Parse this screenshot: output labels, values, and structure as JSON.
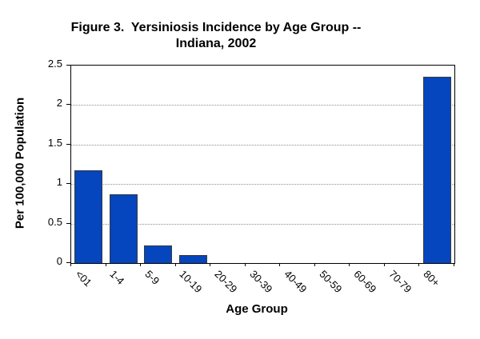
{
  "figure": {
    "background": "#ffffff"
  },
  "chart_data": {
    "type": "bar",
    "title": "Figure 3.  Yersiniosis Incidence by Age Group -- Indiana, 2002",
    "title_lines": [
      "Figure 3.  Yersiniosis Incidence by Age Group --",
      "Indiana, 2002"
    ],
    "xlabel": "Age Group",
    "ylabel": "Per 100,000 Population",
    "categories": [
      "<01",
      "1-4",
      "5-9",
      "10-19",
      "20-29",
      "30-39",
      "40-49",
      "50-59",
      "60-69",
      "70-79",
      "80+"
    ],
    "values": [
      1.17,
      0.87,
      0.22,
      0.1,
      0,
      0,
      0,
      0,
      0,
      0,
      2.36
    ],
    "ylim": [
      0,
      2.5
    ],
    "yticks": [
      0,
      0.5,
      1,
      1.5,
      2,
      2.5
    ],
    "ytick_labels": [
      "0",
      "0.5",
      "1",
      "1.5",
      "2",
      "2.5"
    ],
    "grid": "horizontal-dotted",
    "legend": "none",
    "colors": {
      "bar_fill": "#0545BE",
      "bar_border": "#3a3a3a",
      "gridline": "#8f8f8f",
      "axis": "#000000",
      "text": "#000000"
    }
  }
}
